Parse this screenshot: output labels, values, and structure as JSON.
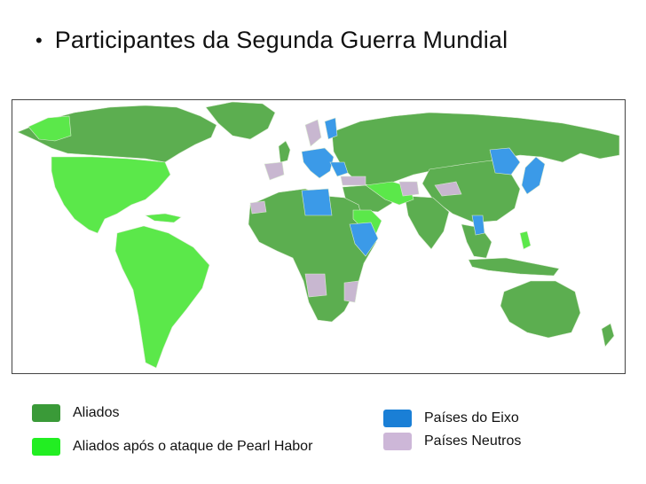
{
  "slide": {
    "bullet": "•",
    "title": "Participantes da Segunda Guerra Mundial"
  },
  "map": {
    "colors": {
      "ocean": "#ffffff",
      "allies": "#5cae50",
      "allies_after_pearl_harbor": "#5be84a",
      "axis": "#3b9ae8",
      "neutral": "#c8b7d0",
      "borders": "#e8f0e0"
    }
  },
  "legend": [
    {
      "key": "allies",
      "label": "Aliados",
      "color": "#3a9a38"
    },
    {
      "key": "allies_after_pearl_harbor",
      "label": "Aliados após o ataque de Pearl Habor",
      "color": "#22ee22"
    },
    {
      "key": "axis",
      "label": "Países do Eixo",
      "color": "#1a7fd6"
    },
    {
      "key": "neutral",
      "label": "Países Neutros",
      "color": "#cdb7d8"
    }
  ]
}
